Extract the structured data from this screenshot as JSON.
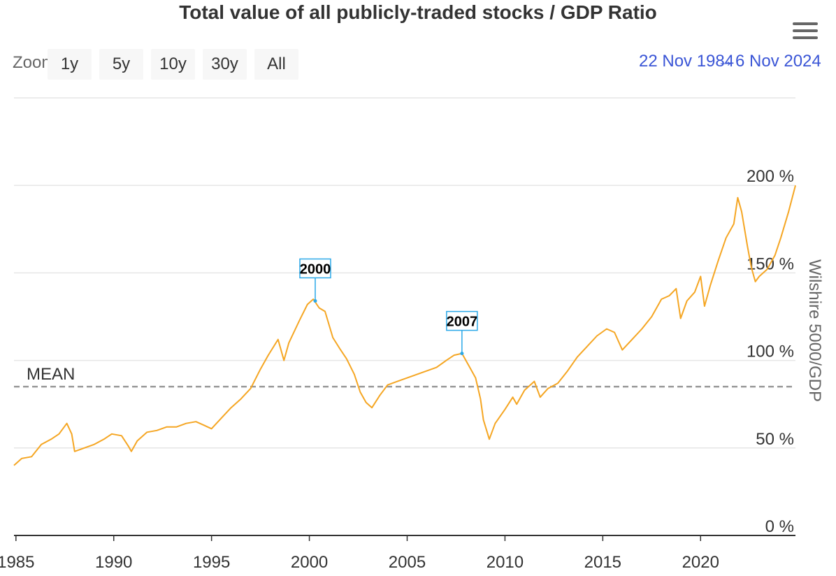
{
  "title": "Total value of all publicly-traded stocks / GDP Ratio",
  "toolbar": {
    "zoom_label": "Zoom",
    "zoom_buttons": [
      "1y",
      "5y",
      "10y",
      "30y",
      "All"
    ],
    "range_from": "22 Nov 1984",
    "range_separator": "→",
    "range_to": "6 Nov 2024"
  },
  "menu_icon": "hamburger-menu-icon",
  "colors": {
    "series": "#f5a623",
    "mean_line": "#999999",
    "flag_border": "#2aa8e8",
    "range_text": "#3a55d6"
  },
  "chart_data": {
    "type": "line",
    "title": "Total value of all publicly-traded stocks / GDP Ratio",
    "xlabel": "",
    "ylabel": "Wilshire 5000/GDP",
    "xlim": [
      1984.9,
      2024.85
    ],
    "ylim": [
      0,
      250
    ],
    "x_ticks": [
      "1985",
      "1990",
      "1995",
      "2000",
      "2005",
      "2010",
      "2015",
      "2020"
    ],
    "y_ticks": [
      "0 %",
      "50 %",
      "100 %",
      "150 %",
      "200 %"
    ],
    "y_tick_values": [
      0,
      50,
      100,
      150,
      200
    ],
    "grid": true,
    "mean": {
      "label": "MEAN",
      "value": 85
    },
    "flags": [
      {
        "label": "2000",
        "x": 2000.3,
        "y": 134
      },
      {
        "label": "2007",
        "x": 2007.8,
        "y": 104
      }
    ],
    "series": [
      {
        "values": [
          [
            1984.9,
            40
          ],
          [
            1985.3,
            44
          ],
          [
            1985.8,
            45
          ],
          [
            1986.3,
            52
          ],
          [
            1986.8,
            55
          ],
          [
            1987.2,
            58
          ],
          [
            1987.6,
            64
          ],
          [
            1987.85,
            58
          ],
          [
            1988.0,
            48
          ],
          [
            1988.5,
            50
          ],
          [
            1989.0,
            52
          ],
          [
            1989.5,
            55
          ],
          [
            1989.9,
            58
          ],
          [
            1990.4,
            57
          ],
          [
            1990.75,
            51
          ],
          [
            1990.9,
            48
          ],
          [
            1991.2,
            54
          ],
          [
            1991.7,
            59
          ],
          [
            1992.2,
            60
          ],
          [
            1992.7,
            62
          ],
          [
            1993.2,
            62
          ],
          [
            1993.7,
            64
          ],
          [
            1994.2,
            65
          ],
          [
            1994.6,
            63
          ],
          [
            1995.0,
            61
          ],
          [
            1995.5,
            67
          ],
          [
            1996.0,
            73
          ],
          [
            1996.5,
            78
          ],
          [
            1997.0,
            84
          ],
          [
            1997.5,
            95
          ],
          [
            1997.9,
            103
          ],
          [
            1998.4,
            112
          ],
          [
            1998.7,
            100
          ],
          [
            1998.95,
            110
          ],
          [
            1999.5,
            123
          ],
          [
            1999.9,
            132
          ],
          [
            2000.2,
            135
          ],
          [
            2000.5,
            130
          ],
          [
            2000.8,
            128
          ],
          [
            2001.2,
            113
          ],
          [
            2001.6,
            106
          ],
          [
            2001.9,
            101
          ],
          [
            2002.3,
            92
          ],
          [
            2002.6,
            82
          ],
          [
            2002.9,
            76
          ],
          [
            2003.2,
            73
          ],
          [
            2003.6,
            80
          ],
          [
            2004.0,
            86
          ],
          [
            2004.5,
            88
          ],
          [
            2005.0,
            90
          ],
          [
            2005.5,
            92
          ],
          [
            2006.0,
            94
          ],
          [
            2006.5,
            96
          ],
          [
            2007.0,
            100
          ],
          [
            2007.4,
            103
          ],
          [
            2007.8,
            104
          ],
          [
            2008.2,
            96
          ],
          [
            2008.5,
            90
          ],
          [
            2008.75,
            78
          ],
          [
            2008.9,
            66
          ],
          [
            2009.2,
            55
          ],
          [
            2009.5,
            64
          ],
          [
            2010.0,
            72
          ],
          [
            2010.4,
            79
          ],
          [
            2010.6,
            75
          ],
          [
            2011.0,
            83
          ],
          [
            2011.5,
            88
          ],
          [
            2011.8,
            79
          ],
          [
            2012.2,
            84
          ],
          [
            2012.7,
            87
          ],
          [
            2013.2,
            94
          ],
          [
            2013.7,
            102
          ],
          [
            2014.2,
            108
          ],
          [
            2014.7,
            114
          ],
          [
            2015.2,
            118
          ],
          [
            2015.6,
            116
          ],
          [
            2016.0,
            106
          ],
          [
            2016.5,
            112
          ],
          [
            2017.0,
            118
          ],
          [
            2017.5,
            125
          ],
          [
            2018.0,
            135
          ],
          [
            2018.4,
            137
          ],
          [
            2018.75,
            141
          ],
          [
            2018.98,
            124
          ],
          [
            2019.3,
            134
          ],
          [
            2019.7,
            139
          ],
          [
            2020.0,
            148
          ],
          [
            2020.2,
            131
          ],
          [
            2020.5,
            143
          ],
          [
            2020.9,
            157
          ],
          [
            2021.3,
            170
          ],
          [
            2021.7,
            178
          ],
          [
            2021.9,
            193
          ],
          [
            2022.1,
            185
          ],
          [
            2022.4,
            165
          ],
          [
            2022.6,
            153
          ],
          [
            2022.8,
            145
          ],
          [
            2023.0,
            148
          ],
          [
            2023.4,
            152
          ],
          [
            2023.8,
            160
          ],
          [
            2024.1,
            170
          ],
          [
            2024.5,
            185
          ],
          [
            2024.85,
            200
          ]
        ]
      }
    ]
  }
}
